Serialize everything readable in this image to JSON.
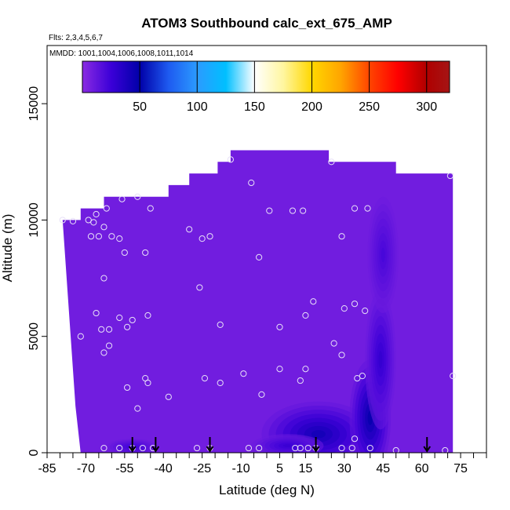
{
  "chart_data": {
    "type": "heatmap",
    "title": "ATOM3 Southbound calc_ext_675_AMP",
    "flights_note": "Flts: 2,3,4,5,6,7",
    "dates_note": "MMDD: 1001,1004,1006,1008,1011,1014",
    "xlabel": "Latitude (deg N)",
    "ylabel": "Altitude (m)",
    "xlim": [
      -85,
      85
    ],
    "ylim": [
      0,
      17500
    ],
    "x_ticks": [
      -85,
      -70,
      -55,
      -40,
      -25,
      -10,
      5,
      15,
      30,
      45,
      60,
      75
    ],
    "x_tick_labels": [
      "-85",
      "-70",
      "-55",
      "-40",
      "-25",
      "-10",
      "5",
      "15",
      "30",
      "45",
      "60",
      "75"
    ],
    "x_minor_step": 5,
    "y_ticks": [
      0,
      5000,
      10000,
      15000
    ],
    "y_tick_labels": [
      "0",
      "5000",
      "10000",
      "15000"
    ],
    "colorbar": {
      "range": [
        0,
        320
      ],
      "ticks": [
        50,
        100,
        150,
        200,
        250,
        300
      ],
      "tick_labels": [
        "50",
        "100",
        "150",
        "200",
        "250",
        "300"
      ],
      "stops": [
        {
          "v": 0,
          "color": "#8a2be2"
        },
        {
          "v": 25,
          "color": "#3b00d8"
        },
        {
          "v": 50,
          "color": "#0000a8"
        },
        {
          "v": 75,
          "color": "#1e5af0"
        },
        {
          "v": 100,
          "color": "#2b9bff"
        },
        {
          "v": 125,
          "color": "#00bfff"
        },
        {
          "v": 150,
          "color": "#ffffff"
        },
        {
          "v": 175,
          "color": "#fff6a0"
        },
        {
          "v": 200,
          "color": "#ffd700"
        },
        {
          "v": 225,
          "color": "#ffa500"
        },
        {
          "v": 250,
          "color": "#ff4500"
        },
        {
          "v": 275,
          "color": "#ff0000"
        },
        {
          "v": 300,
          "color": "#b00000"
        },
        {
          "v": 320,
          "color": "#a51515"
        }
      ]
    },
    "field": {
      "background_value": 8,
      "upper_envelope": [
        [
          -79,
          10000
        ],
        [
          -72,
          10000
        ],
        [
          -72,
          10500
        ],
        [
          -63,
          10500
        ],
        [
          -63,
          11000
        ],
        [
          -38,
          11000
        ],
        [
          -38,
          11500
        ],
        [
          -30,
          11500
        ],
        [
          -30,
          12000
        ],
        [
          -19,
          12000
        ],
        [
          -19,
          12500
        ],
        [
          -14,
          12500
        ],
        [
          -14,
          13000
        ],
        [
          24,
          13000
        ],
        [
          24,
          12500
        ],
        [
          50,
          12500
        ],
        [
          50,
          12000
        ],
        [
          72,
          12000
        ]
      ],
      "lower_envelope": [
        [
          -79,
          10000
        ],
        [
          -74,
          2000
        ],
        [
          -72,
          0
        ],
        [
          72,
          0
        ],
        [
          72,
          12000
        ]
      ],
      "blobs": [
        {
          "x": 20,
          "y": 800,
          "rx": 22,
          "ry": 1400,
          "v": 45
        },
        {
          "x": 40,
          "y": 1500,
          "rx": 8,
          "ry": 2500,
          "v": 50
        },
        {
          "x": 44,
          "y": 4000,
          "rx": 6,
          "ry": 3000,
          "v": 30
        },
        {
          "x": 8,
          "y": 300,
          "rx": 14,
          "ry": 500,
          "v": 28
        },
        {
          "x": -52,
          "y": 250,
          "rx": 10,
          "ry": 350,
          "v": 25
        },
        {
          "x": 45,
          "y": 8500,
          "rx": 6,
          "ry": 2500,
          "v": 22
        }
      ]
    },
    "samples": [
      [
        -79,
        10000
      ],
      [
        -75,
        9950
      ],
      [
        -69,
        10000
      ],
      [
        -67,
        9900
      ],
      [
        -66,
        10250
      ],
      [
        -68,
        9300
      ],
      [
        -65,
        9300
      ],
      [
        -63,
        9700
      ],
      [
        -62,
        10500
      ],
      [
        -60,
        9300
      ],
      [
        -57,
        9200
      ],
      [
        -56,
        10900
      ],
      [
        -50,
        11000
      ],
      [
        -45,
        10500
      ],
      [
        -55,
        8600
      ],
      [
        -47,
        8600
      ],
      [
        -63,
        7500
      ],
      [
        -66,
        6000
      ],
      [
        -72,
        5000
      ],
      [
        -64,
        5300
      ],
      [
        -61,
        5300
      ],
      [
        -57,
        5800
      ],
      [
        -54,
        5400
      ],
      [
        -52,
        5700
      ],
      [
        -46,
        5900
      ],
      [
        -61,
        4600
      ],
      [
        -63,
        4300
      ],
      [
        -54,
        2800
      ],
      [
        -47,
        3200
      ],
      [
        -46,
        3000
      ],
      [
        -50,
        1900
      ],
      [
        -38,
        2400
      ],
      [
        -24,
        3200
      ],
      [
        -18,
        3000
      ],
      [
        -9,
        3400
      ],
      [
        -2,
        2500
      ],
      [
        -30,
        9600
      ],
      [
        -25,
        9200
      ],
      [
        -22,
        9300
      ],
      [
        -26,
        7100
      ],
      [
        -18,
        5500
      ],
      [
        -14,
        12600
      ],
      [
        -6,
        11600
      ],
      [
        -3,
        8400
      ],
      [
        1,
        10400
      ],
      [
        10,
        10400
      ],
      [
        14,
        10400
      ],
      [
        25,
        12500
      ],
      [
        29,
        9300
      ],
      [
        34,
        10500
      ],
      [
        39,
        10500
      ],
      [
        71,
        11900
      ],
      [
        18,
        6500
      ],
      [
        15,
        5900
      ],
      [
        30,
        6200
      ],
      [
        34,
        6400
      ],
      [
        38,
        6100
      ],
      [
        5,
        5400
      ],
      [
        26,
        4700
      ],
      [
        29,
        4200
      ],
      [
        35,
        3200
      ],
      [
        37,
        3300
      ],
      [
        5,
        3600
      ],
      [
        13,
        3100
      ],
      [
        15,
        3600
      ],
      [
        34,
        600
      ],
      [
        72,
        3300
      ],
      [
        -63,
        200
      ],
      [
        -57,
        200
      ],
      [
        -52,
        200
      ],
      [
        -48,
        200
      ],
      [
        -44,
        200
      ],
      [
        -27,
        200
      ],
      [
        -22,
        200
      ],
      [
        -7,
        200
      ],
      [
        -3,
        200
      ],
      [
        11,
        200
      ],
      [
        13,
        200
      ],
      [
        16,
        200
      ],
      [
        19,
        200
      ],
      [
        29,
        200
      ],
      [
        33,
        200
      ],
      [
        40,
        200
      ],
      [
        50,
        100
      ],
      [
        69,
        100
      ]
    ],
    "profile_arrows": [
      -52,
      -43,
      -22,
      19,
      62
    ]
  }
}
